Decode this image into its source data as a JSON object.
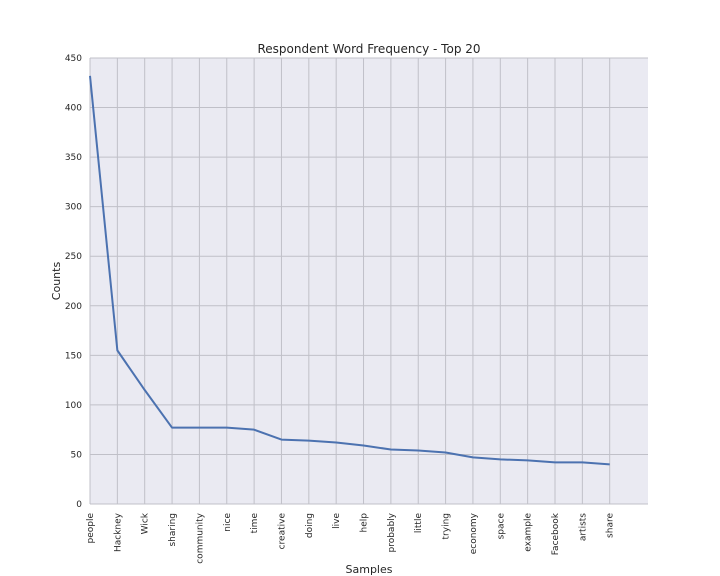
{
  "chart_data": {
    "type": "line",
    "title": "Respondent Word Frequency - Top 20",
    "xlabel": "Samples",
    "ylabel": "Counts",
    "categories": [
      "people",
      "Hackney",
      "Wick",
      "sharing",
      "community",
      "nice",
      "time",
      "creative",
      "doing",
      "live",
      "help",
      "probably",
      "little",
      "trying",
      "economy",
      "space",
      "example",
      "Facebook",
      "artists",
      "share"
    ],
    "values": [
      432,
      155,
      115,
      77,
      77,
      77,
      75,
      65,
      64,
      62,
      59,
      55,
      54,
      52,
      47,
      45,
      44,
      42,
      42,
      40
    ],
    "ylim": [
      0,
      450
    ],
    "yticks": [
      0,
      50,
      100,
      150,
      200,
      250,
      300,
      350,
      400,
      450
    ],
    "grid": true,
    "line_color": "#4c72b0",
    "background_color": "#eaeaf2",
    "grid_color": "#c0c0c8"
  }
}
